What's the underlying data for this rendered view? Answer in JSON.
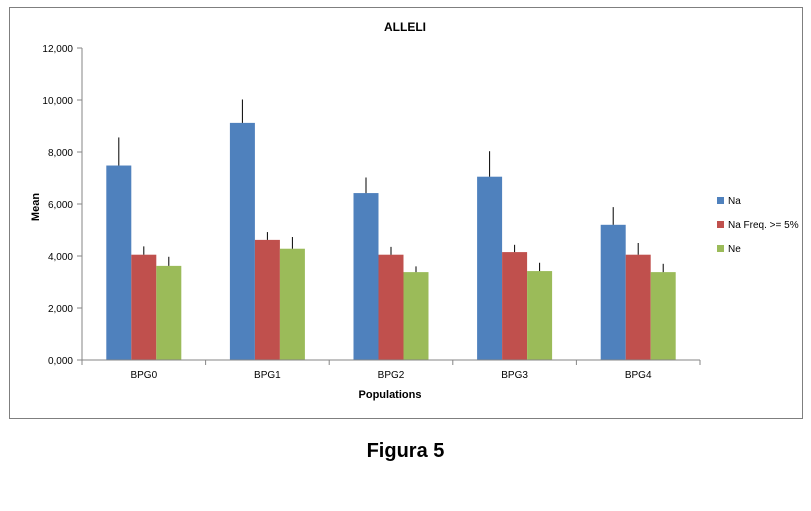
{
  "chart_data": {
    "type": "bar",
    "title": "ALLELI",
    "xlabel": "Populations",
    "ylabel": "Mean",
    "categories": [
      "BPG0",
      "BPG1",
      "BPG2",
      "BPG3",
      "BPG4"
    ],
    "ylim": [
      0,
      12
    ],
    "yticks": [
      0,
      2,
      4,
      6,
      8,
      10,
      12
    ],
    "ytick_labels": [
      "0,000",
      "2,000",
      "4,000",
      "6,000",
      "8,000",
      "10,000",
      "12,000"
    ],
    "series": [
      {
        "name": "Na",
        "color": "#4f81bd",
        "values": [
          7.48,
          9.12,
          6.42,
          7.05,
          5.2
        ],
        "errors": [
          1.08,
          0.9,
          0.6,
          0.98,
          0.68
        ]
      },
      {
        "name": "Na Freq. >= 5%",
        "color": "#c0504d",
        "values": [
          4.05,
          4.62,
          4.05,
          4.15,
          4.05
        ],
        "errors": [
          0.32,
          0.3,
          0.3,
          0.28,
          0.45
        ]
      },
      {
        "name": "Ne",
        "color": "#9bbb59",
        "values": [
          3.62,
          4.28,
          3.38,
          3.42,
          3.38
        ],
        "errors": [
          0.35,
          0.45,
          0.22,
          0.32,
          0.32
        ]
      }
    ],
    "legend_position": "right",
    "grid": false
  },
  "caption": "Figura 5"
}
